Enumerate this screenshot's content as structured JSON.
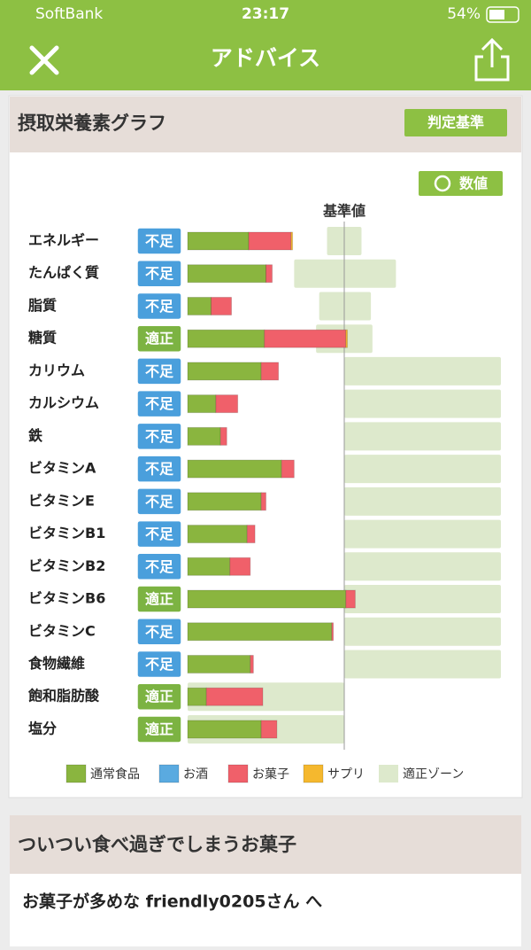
{
  "status_bar": {
    "carrier": "SoftBank",
    "time": "23:17",
    "battery": "54%"
  },
  "header": {
    "title": "アドバイス"
  },
  "nutrition_card": {
    "title": "摂取栄養素グラフ",
    "criteria_button": "判定基準",
    "value_button": "数値",
    "chart_data": {
      "type": "bar",
      "orientation": "horizontal",
      "stacked": true,
      "reference_label": "基準値",
      "reference": 100,
      "categories": [
        "エネルギー",
        "たんぱく質",
        "脂質",
        "糖質",
        "カリウム",
        "カルシウム",
        "鉄",
        "ビタミンA",
        "ビタミンE",
        "ビタミンB1",
        "ビタミンB2",
        "ビタミンB6",
        "ビタミンC",
        "食物繊維",
        "飽和脂肪酸",
        "塩分"
      ],
      "statuses": [
        "不足",
        "不足",
        "不足",
        "適正",
        "不足",
        "不足",
        "不足",
        "不足",
        "不足",
        "不足",
        "不足",
        "適正",
        "不足",
        "不足",
        "適正",
        "適正"
      ],
      "status_colors": [
        "#4a9fdc",
        "#4a9fdc",
        "#4a9fdc",
        "#7cb342",
        "#4a9fdc",
        "#4a9fdc",
        "#4a9fdc",
        "#4a9fdc",
        "#4a9fdc",
        "#4a9fdc",
        "#4a9fdc",
        "#7cb342",
        "#4a9fdc",
        "#4a9fdc",
        "#7cb342",
        "#7cb342"
      ],
      "series": [
        {
          "name": "通常食品",
          "color": "#8ab53f",
          "values": [
            39,
            50,
            15,
            49,
            47,
            18,
            21,
            60,
            47,
            38,
            27,
            101,
            92,
            40,
            12,
            47
          ]
        },
        {
          "name": "お酒",
          "color": "#5aaae0",
          "values": [
            0,
            0,
            0,
            0,
            0,
            0,
            0,
            0,
            0,
            0,
            0,
            0,
            0,
            0,
            0,
            0
          ]
        },
        {
          "name": "お菓子",
          "color": "#f0606a",
          "values": [
            27,
            4,
            13,
            52,
            11,
            14,
            4,
            8,
            3,
            5,
            13,
            6,
            1,
            2,
            36,
            10
          ]
        },
        {
          "name": "サプリ",
          "color": "#f5b82e",
          "values": [
            1,
            0,
            0,
            1,
            0,
            0,
            0,
            0,
            0,
            0,
            0,
            0,
            0,
            0,
            0,
            0
          ]
        }
      ],
      "zone": {
        "name": "適正ゾーン",
        "color": "#dde9cc",
        "low": [
          89,
          68,
          84,
          82,
          100,
          100,
          100,
          100,
          100,
          100,
          100,
          100,
          100,
          100,
          0,
          0
        ],
        "high": [
          111,
          133,
          117,
          118,
          200,
          200,
          200,
          200,
          200,
          200,
          200,
          200,
          200,
          200,
          100,
          100
        ]
      },
      "xlim": [
        0,
        200
      ]
    }
  },
  "snack_card": {
    "title": "ついつい食べ過ぎでしまうお菓子",
    "message": "お菓子が多めな friendly0205さん へ"
  }
}
